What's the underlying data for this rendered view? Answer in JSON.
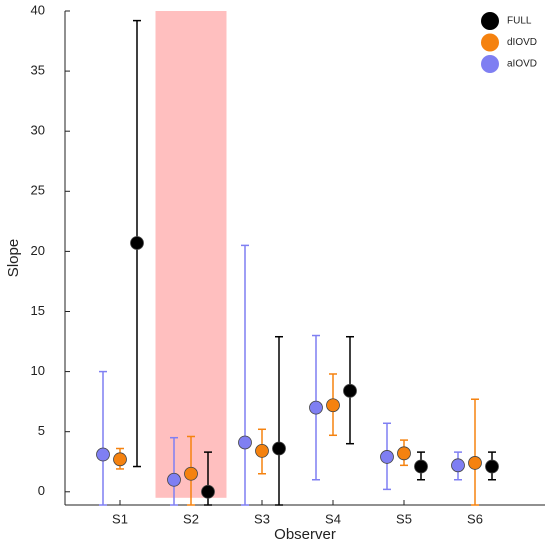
{
  "chart_data": {
    "type": "errorbar-dots",
    "x_label": "Observer",
    "y_label": "Slope",
    "categories": [
      "S1",
      "S2",
      "S3",
      "S4",
      "S5",
      "S6"
    ],
    "series": [
      {
        "name": "aIOVD",
        "color": "#7f7ff2",
        "values": [
          3.1,
          1.0,
          4.1,
          7.0,
          2.9,
          2.2
        ],
        "lower": [
          -1.1,
          -1.1,
          -1.1,
          1.0,
          0.2,
          1.0
        ],
        "upper": [
          10.0,
          4.5,
          20.5,
          13.0,
          5.7,
          3.3
        ]
      },
      {
        "name": "dIOVD",
        "color": "#f5820f",
        "values": [
          2.7,
          1.5,
          3.4,
          7.2,
          3.2,
          2.4
        ],
        "lower": [
          1.9,
          -1.1,
          1.5,
          4.7,
          2.2,
          -1.1
        ],
        "upper": [
          3.6,
          4.6,
          5.2,
          9.8,
          4.3,
          7.7
        ]
      },
      {
        "name": "FULL",
        "color": "#000000",
        "values": [
          20.7,
          0.0,
          3.6,
          8.4,
          2.1,
          2.1
        ],
        "lower": [
          2.1,
          -1.1,
          -1.1,
          4.0,
          1.0,
          1.0
        ],
        "upper": [
          39.2,
          3.3,
          12.9,
          12.9,
          3.3,
          3.3
        ]
      }
    ],
    "highlight": {
      "category": "S2",
      "color": "#ffbfbf",
      "from": -0.5,
      "to": 40
    },
    "ylim": [
      -1.1,
      40
    ],
    "yticks": [
      0,
      5,
      10,
      15,
      20,
      25,
      30,
      35,
      40
    ],
    "legend": "top-right"
  }
}
